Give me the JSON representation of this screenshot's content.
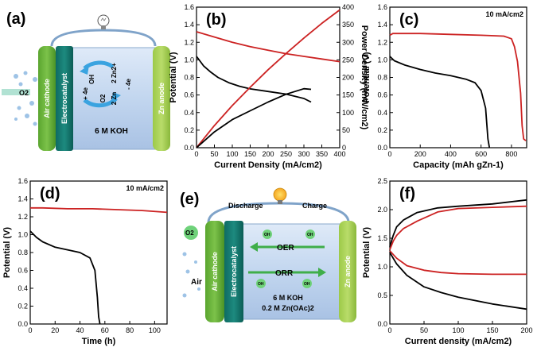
{
  "panels": {
    "a": {
      "label": "(a)",
      "air_cathode": "Air cathode",
      "electrocatalyst": "Electrocatalyst",
      "zn_anode": "Zn anode",
      "electrolyte": "6 M KOH",
      "o2": "O2",
      "oh": "OH",
      "four_e_left": "+ 4e",
      "o2_inner": "O2",
      "zn2_top": "2 Zn2+",
      "zn_bottom": "2 Zn",
      "four_e_right": "- 4e"
    },
    "e": {
      "label": "(e)",
      "discharge": "Discharge",
      "charge": "Charge",
      "air_cathode": "Air cathode",
      "electrocatalyst": "Electrocatalyst",
      "zn_anode": "Zn anode",
      "oer": "OER",
      "orr": "ORR",
      "electrolyte_line1": "6 M KOH",
      "electrolyte_line2": "0.2 M Zn(OAc)2",
      "o2": "O2",
      "air": "Air",
      "oh": "OH"
    }
  },
  "chart_data": [
    {
      "panel": "(b)",
      "type": "line",
      "xlabel": "Current Density (mA/cm2)",
      "ylabel": "Potential (V)",
      "ylabel_right": "Power Density (mW/cm2)",
      "xlim": [
        0,
        400
      ],
      "ylim": [
        0,
        1.6
      ],
      "ylim_right": [
        0,
        400
      ],
      "xticks": [
        0,
        50,
        100,
        150,
        200,
        250,
        300,
        350,
        400
      ],
      "yticks": [
        0.0,
        0.2,
        0.4,
        0.6,
        0.8,
        1.0,
        1.2,
        1.4,
        1.6
      ],
      "yticks_right": [
        0,
        50,
        100,
        150,
        200,
        250,
        300,
        350,
        400
      ],
      "series": [
        {
          "color": "#cc2222",
          "axis": "left",
          "x": [
            0,
            50,
            100,
            150,
            200,
            250,
            300,
            350,
            400
          ],
          "y": [
            1.32,
            1.26,
            1.2,
            1.15,
            1.11,
            1.07,
            1.04,
            1.01,
            0.98
          ]
        },
        {
          "color": "#000000",
          "axis": "left",
          "x": [
            0,
            20,
            40,
            60,
            90,
            120,
            150,
            200,
            250,
            300,
            320
          ],
          "y": [
            1.04,
            0.93,
            0.86,
            0.8,
            0.74,
            0.7,
            0.67,
            0.64,
            0.61,
            0.56,
            0.52
          ]
        },
        {
          "color": "#cc2222",
          "axis": "right",
          "x": [
            0,
            50,
            100,
            150,
            200,
            250,
            300,
            350,
            400
          ],
          "y": [
            0,
            63,
            120,
            172,
            222,
            268,
            312,
            354,
            392
          ]
        },
        {
          "color": "#000000",
          "axis": "right",
          "x": [
            0,
            50,
            100,
            150,
            200,
            250,
            300,
            320
          ],
          "y": [
            0,
            45,
            80,
            105,
            130,
            152,
            168,
            166
          ]
        }
      ]
    },
    {
      "panel": "(c)",
      "type": "line",
      "xlabel": "Capacity (mAh gZn-1)",
      "ylabel": "Potential (V)",
      "annotation": "10 mA/cm2",
      "xlim": [
        0,
        900
      ],
      "ylim": [
        0,
        1.6
      ],
      "xticks": [
        0,
        200,
        400,
        600,
        800
      ],
      "yticks": [
        0.0,
        0.2,
        0.4,
        0.6,
        0.8,
        1.0,
        1.2,
        1.4,
        1.6
      ],
      "series": [
        {
          "color": "#cc2222",
          "x": [
            0,
            20,
            200,
            400,
            600,
            750,
            800,
            820,
            840,
            860,
            870,
            880,
            895
          ],
          "y": [
            1.28,
            1.3,
            1.3,
            1.29,
            1.28,
            1.27,
            1.24,
            1.15,
            0.98,
            0.62,
            0.25,
            0.1,
            0.08
          ]
        },
        {
          "color": "#000000",
          "x": [
            0,
            30,
            100,
            200,
            300,
            400,
            500,
            560,
            600,
            630,
            645,
            655
          ],
          "y": [
            1.04,
            0.99,
            0.94,
            0.89,
            0.85,
            0.82,
            0.78,
            0.74,
            0.65,
            0.45,
            0.1,
            0.0
          ]
        }
      ]
    },
    {
      "panel": "(d)",
      "type": "line",
      "xlabel": "Time (h)",
      "ylabel": "Potential (V)",
      "annotation": "10 mA/cm2",
      "xlim": [
        0,
        110
      ],
      "ylim": [
        0,
        1.6
      ],
      "xticks": [
        0,
        20,
        40,
        60,
        80,
        100
      ],
      "yticks": [
        0.0,
        0.2,
        0.4,
        0.6,
        0.8,
        1.0,
        1.2,
        1.4,
        1.6
      ],
      "series": [
        {
          "color": "#cc2222",
          "x": [
            0,
            10,
            30,
            50,
            70,
            90,
            110
          ],
          "y": [
            1.3,
            1.3,
            1.29,
            1.29,
            1.28,
            1.27,
            1.25
          ]
        },
        {
          "color": "#000000",
          "x": [
            0,
            5,
            10,
            20,
            30,
            40,
            48,
            52,
            54,
            55,
            56
          ],
          "y": [
            1.04,
            0.97,
            0.92,
            0.86,
            0.83,
            0.8,
            0.74,
            0.6,
            0.3,
            0.08,
            0.0
          ]
        }
      ]
    },
    {
      "panel": "(f)",
      "type": "line",
      "xlabel": "Current density (mA/cm2)",
      "ylabel": "Potential (V)",
      "xlim": [
        0,
        200
      ],
      "ylim": [
        0,
        2.5
      ],
      "xticks": [
        0,
        50,
        100,
        150,
        200
      ],
      "yticks": [
        0.0,
        0.5,
        1.0,
        1.5,
        2.0,
        2.5
      ],
      "series": [
        {
          "color": "#000000",
          "x": [
            0,
            5,
            10,
            20,
            40,
            70,
            100,
            150,
            200
          ],
          "y": [
            1.35,
            1.55,
            1.7,
            1.82,
            1.95,
            2.03,
            2.06,
            2.1,
            2.17
          ]
        },
        {
          "color": "#cc2222",
          "x": [
            0,
            5,
            10,
            20,
            40,
            70,
            100,
            150,
            200
          ],
          "y": [
            1.3,
            1.45,
            1.55,
            1.67,
            1.8,
            1.96,
            2.02,
            2.04,
            2.06
          ]
        },
        {
          "color": "#cc2222",
          "x": [
            0,
            10,
            25,
            50,
            75,
            100,
            150,
            200
          ],
          "y": [
            1.28,
            1.15,
            1.02,
            0.94,
            0.9,
            0.88,
            0.87,
            0.87
          ]
        },
        {
          "color": "#000000",
          "x": [
            0,
            10,
            25,
            50,
            75,
            100,
            150,
            200
          ],
          "y": [
            1.25,
            1.05,
            0.85,
            0.65,
            0.55,
            0.47,
            0.35,
            0.26
          ]
        }
      ]
    }
  ]
}
